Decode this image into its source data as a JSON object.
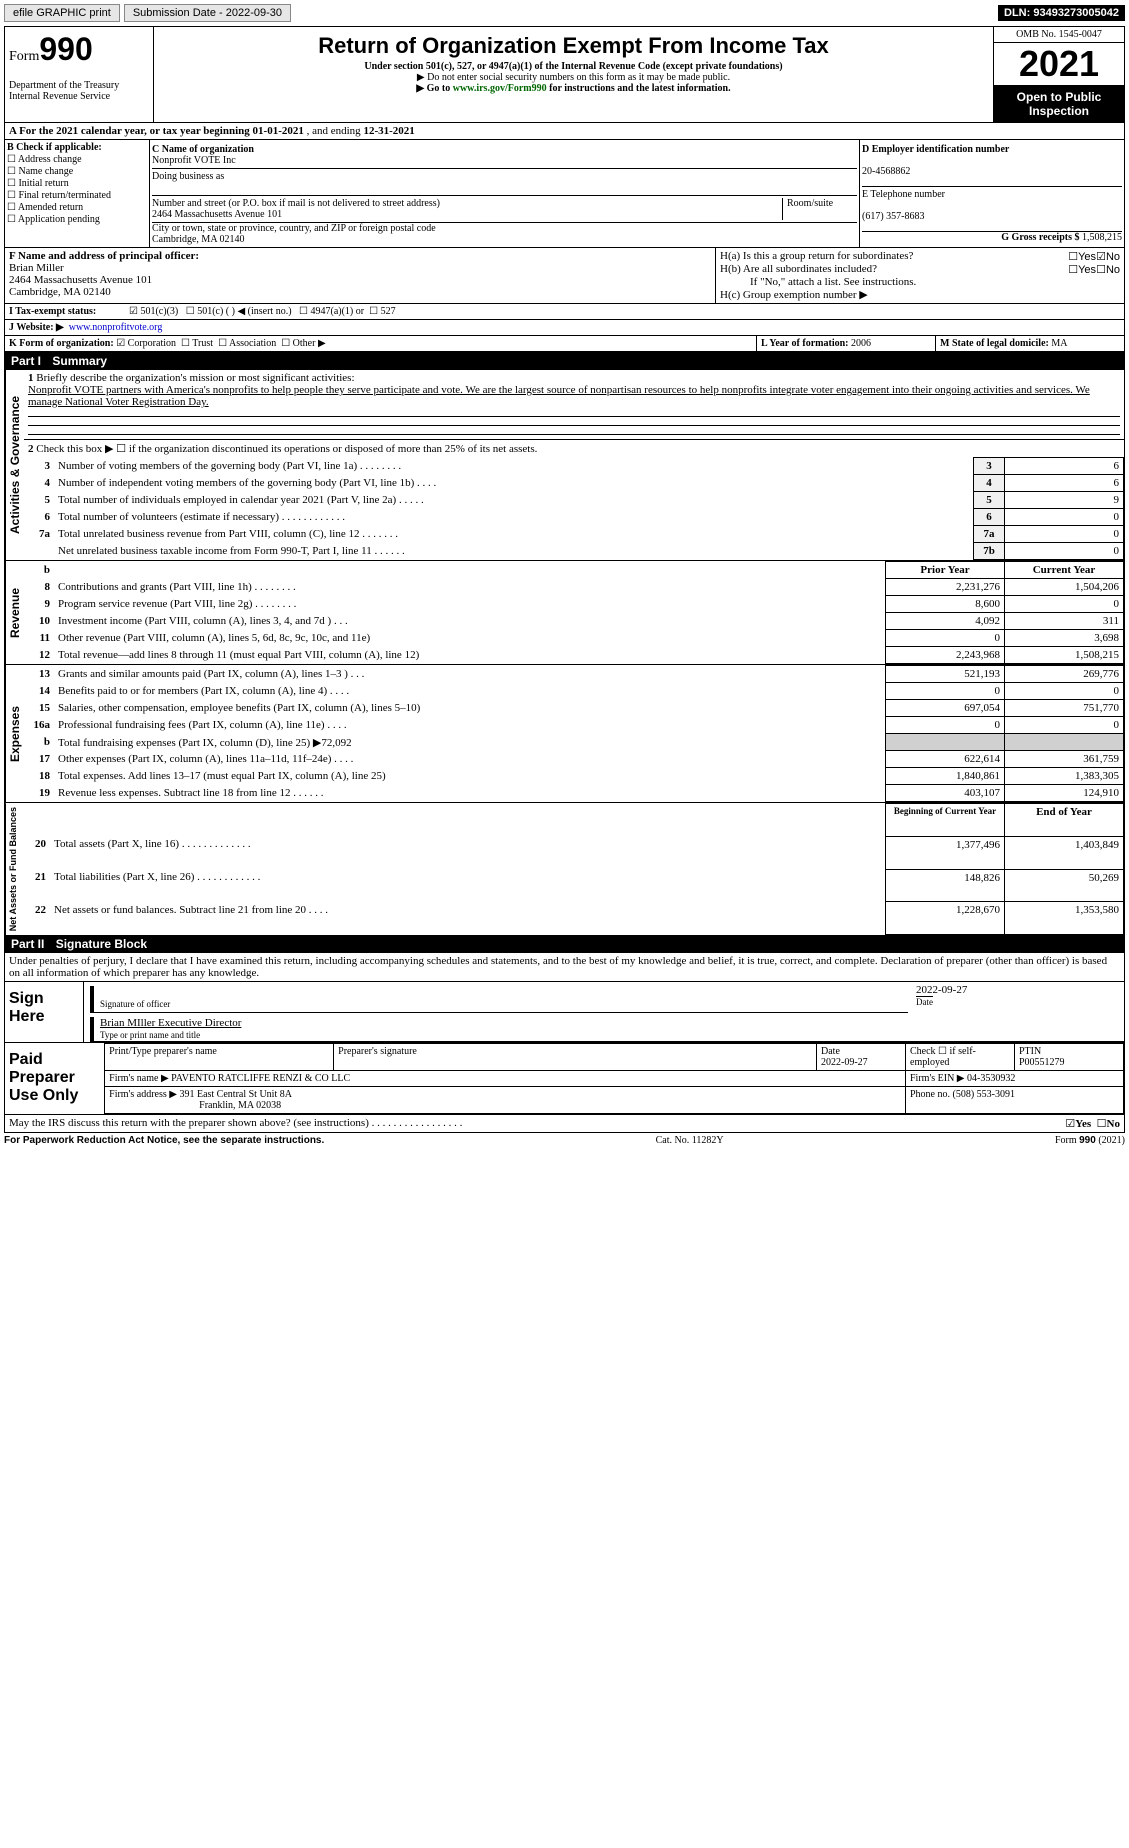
{
  "top": {
    "efile": "efile GRAPHIC print",
    "submission_label": "Submission Date - 2022-09-30",
    "dln": "DLN: 93493273005042"
  },
  "header": {
    "form_word": "Form",
    "form_num": "990",
    "dept": "Department of the Treasury\nInternal Revenue Service",
    "title": "Return of Organization Exempt From Income Tax",
    "subtitle": "Under section 501(c), 527, or 4947(a)(1) of the Internal Revenue Code (except private foundations)",
    "note1": "▶ Do not enter social security numbers on this form as it may be made public.",
    "note2_pre": "▶ Go to ",
    "note2_link": "www.irs.gov/Form990",
    "note2_post": " for instructions and the latest information.",
    "omb": "OMB No. 1545-0047",
    "year": "2021",
    "open": "Open to Public Inspection"
  },
  "period": {
    "text_pre": "A For the 2021 calendar year, or tax year beginning ",
    "begin": "01-01-2021",
    "mid": " , and ending ",
    "end": "12-31-2021"
  },
  "sectionB": {
    "label": "B Check if applicable:",
    "opts": [
      "Address change",
      "Name change",
      "Initial return",
      "Final return/terminated",
      "Amended return",
      "Application pending"
    ]
  },
  "sectionC": {
    "name_lbl": "C Name of organization",
    "name": "Nonprofit VOTE Inc",
    "dba_lbl": "Doing business as",
    "street_lbl": "Number and street (or P.O. box if mail is not delivered to street address)",
    "room_lbl": "Room/suite",
    "street": "2464 Massachusetts Avenue 101",
    "city_lbl": "City or town, state or province, country, and ZIP or foreign postal code",
    "city": "Cambridge, MA  02140"
  },
  "sectionD": {
    "lbl": "D Employer identification number",
    "val": "20-4568862"
  },
  "sectionE": {
    "lbl": "E Telephone number",
    "val": "(617) 357-8683"
  },
  "sectionG": {
    "lbl": "G Gross receipts $",
    "val": "1,508,215"
  },
  "sectionF": {
    "lbl": "F Name and address of principal officer:",
    "name": "Brian Miller",
    "addr1": "2464 Massachusetts Avenue 101",
    "addr2": "Cambridge, MA  02140"
  },
  "sectionH": {
    "a": "H(a)  Is this a group return for subordinates?",
    "b": "H(b)  Are all subordinates included?",
    "b_note": "If \"No,\" attach a list. See instructions.",
    "c": "H(c)  Group exemption number ▶",
    "yes": "Yes",
    "no": "No"
  },
  "sectionI": {
    "lbl": "I  Tax-exempt status:",
    "opts": [
      "501(c)(3)",
      "501(c) (  ) ◀ (insert no.)",
      "4947(a)(1) or",
      "527"
    ]
  },
  "sectionJ": {
    "lbl": "J  Website: ▶",
    "val": "www.nonprofitvote.org"
  },
  "sectionK": {
    "lbl": "K Form of organization:",
    "opts": [
      "Corporation",
      "Trust",
      "Association",
      "Other ▶"
    ]
  },
  "sectionL": {
    "lbl": "L Year of formation:",
    "val": "2006"
  },
  "sectionM": {
    "lbl": "M State of legal domicile:",
    "val": "MA"
  },
  "part1": {
    "hdr": "Part I",
    "title": "Summary",
    "q1_lbl": "1",
    "q1": "Briefly describe the organization's mission or most significant activities:",
    "q1_text": "Nonprofit VOTE partners with America's nonprofits to help people they serve participate and vote. We are the largest source of nonpartisan resources to help nonprofits integrate voter engagement into their ongoing activities and services. We manage National Voter Registration Day.",
    "q2": "Check this box ▶ ☐ if the organization discontinued its operations or disposed of more than 25% of its net assets.",
    "rows_gov": [
      {
        "n": "3",
        "t": "Number of voting members of the governing body (Part VI, line 1a)   .    .    .    .    .    .    .    .",
        "box": "3",
        "v": "6"
      },
      {
        "n": "4",
        "t": "Number of independent voting members of the governing body (Part VI, line 1b)   .    .    .    .",
        "box": "4",
        "v": "6"
      },
      {
        "n": "5",
        "t": "Total number of individuals employed in calendar year 2021 (Part V, line 2a)   .    .    .    .    .",
        "box": "5",
        "v": "9"
      },
      {
        "n": "6",
        "t": "Total number of volunteers (estimate if necessary)    .    .    .    .    .    .    .    .    .    .    .    .",
        "box": "6",
        "v": "0"
      },
      {
        "n": "7a",
        "t": "Total unrelated business revenue from Part VIII, column (C), line 12   .    .    .    .    .    .    .",
        "box": "7a",
        "v": "0"
      },
      {
        "n": "",
        "t": "Net unrelated business taxable income from Form 990-T, Part I, line 11   .    .    .    .    .    .",
        "box": "7b",
        "v": "0"
      }
    ],
    "col_prior": "Prior Year",
    "col_curr": "Current Year",
    "rows_rev": [
      {
        "n": "8",
        "t": "Contributions and grants (Part VIII, line 1h)   .    .    .    .    .    .    .    .",
        "p": "2,231,276",
        "c": "1,504,206"
      },
      {
        "n": "9",
        "t": "Program service revenue (Part VIII, line 2g)   .    .    .    .    .    .    .    .",
        "p": "8,600",
        "c": "0"
      },
      {
        "n": "10",
        "t": "Investment income (Part VIII, column (A), lines 3, 4, and 7d )   .    .    .",
        "p": "4,092",
        "c": "311"
      },
      {
        "n": "11",
        "t": "Other revenue (Part VIII, column (A), lines 5, 6d, 8c, 9c, 10c, and 11e)",
        "p": "0",
        "c": "3,698"
      },
      {
        "n": "12",
        "t": "Total revenue—add lines 8 through 11 (must equal Part VIII, column (A), line 12)",
        "p": "2,243,968",
        "c": "1,508,215"
      }
    ],
    "rows_exp": [
      {
        "n": "13",
        "t": "Grants and similar amounts paid (Part IX, column (A), lines 1–3 )   .    .    .",
        "p": "521,193",
        "c": "269,776"
      },
      {
        "n": "14",
        "t": "Benefits paid to or for members (Part IX, column (A), line 4)   .    .    .    .",
        "p": "0",
        "c": "0"
      },
      {
        "n": "15",
        "t": "Salaries, other compensation, employee benefits (Part IX, column (A), lines 5–10)",
        "p": "697,054",
        "c": "751,770"
      },
      {
        "n": "16a",
        "t": "Professional fundraising fees (Part IX, column (A), line 11e)   .    .    .    .",
        "p": "0",
        "c": "0"
      },
      {
        "n": "b",
        "t": "Total fundraising expenses (Part IX, column (D), line 25) ▶72,092",
        "p": "",
        "c": "",
        "shade": true
      },
      {
        "n": "17",
        "t": "Other expenses (Part IX, column (A), lines 11a–11d, 11f–24e)   .    .    .    .",
        "p": "622,614",
        "c": "361,759"
      },
      {
        "n": "18",
        "t": "Total expenses. Add lines 13–17 (must equal Part IX, column (A), line 25)",
        "p": "1,840,861",
        "c": "1,383,305"
      },
      {
        "n": "19",
        "t": "Revenue less expenses. Subtract line 18 from line 12   .    .    .    .    .    .",
        "p": "403,107",
        "c": "124,910"
      }
    ],
    "col_begin": "Beginning of Current Year",
    "col_end": "End of Year",
    "rows_net": [
      {
        "n": "20",
        "t": "Total assets (Part X, line 16)   .    .    .    .    .    .    .    .    .    .    .    .    .",
        "p": "1,377,496",
        "c": "1,403,849"
      },
      {
        "n": "21",
        "t": "Total liabilities (Part X, line 26)   .    .    .    .    .    .    .    .    .    .    .    .",
        "p": "148,826",
        "c": "50,269"
      },
      {
        "n": "22",
        "t": "Net assets or fund balances. Subtract line 21 from line 20   .    .    .    .",
        "p": "1,228,670",
        "c": "1,353,580"
      }
    ],
    "vert_gov": "Activities & Governance",
    "vert_rev": "Revenue",
    "vert_exp": "Expenses",
    "vert_net": "Net Assets or Fund Balances"
  },
  "part2": {
    "hdr": "Part II",
    "title": "Signature Block",
    "penalty": "Under penalties of perjury, I declare that I have examined this return, including accompanying schedules and statements, and to the best of my knowledge and belief, it is true, correct, and complete. Declaration of preparer (other than officer) is based on all information of which preparer has any knowledge.",
    "sign_here": "Sign Here",
    "sig_officer": "Signature of officer",
    "date_lbl": "Date",
    "date": "2022-09-27",
    "officer_name": "Brian MIller Executive Director",
    "type_name": "Type or print name and title",
    "paid": "Paid Preparer Use Only",
    "prep_name_lbl": "Print/Type preparer's name",
    "prep_sig_lbl": "Preparer's signature",
    "prep_date": "2022-09-27",
    "check_self": "Check ☐ if self-employed",
    "ptin_lbl": "PTIN",
    "ptin": "P00551279",
    "firm_name_lbl": "Firm's name   ▶",
    "firm_name": "PAVENTO RATCLIFFE RENZI & CO LLC",
    "firm_ein_lbl": "Firm's EIN ▶",
    "firm_ein": "04-3530932",
    "firm_addr_lbl": "Firm's address ▶",
    "firm_addr": "391 East Central St Unit 8A",
    "firm_city": "Franklin, MA  02038",
    "phone_lbl": "Phone no.",
    "phone": "(508) 553-3091",
    "discuss": "May the IRS discuss this return with the preparer shown above? (see instructions)   .    .    .    .    .    .    .    .    .    .    .    .    .    .    .    .    ."
  },
  "footer": {
    "left": "For Paperwork Reduction Act Notice, see the separate instructions.",
    "mid": "Cat. No. 11282Y",
    "right": "Form 990 (2021)"
  },
  "colors": {
    "link": "#0000cc",
    "green_link": "#006600"
  }
}
